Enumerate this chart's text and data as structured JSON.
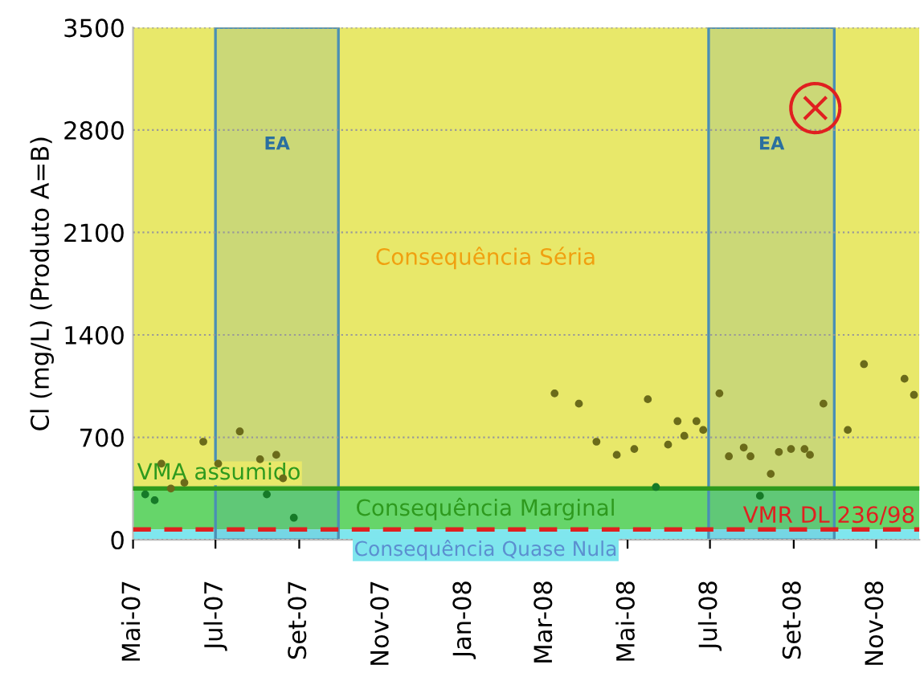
{
  "chart_data": {
    "type": "scatter",
    "ylabel": "Cl (mg/L) (Produto A=B)",
    "xlim": [
      "2007-05-01",
      "2008-12-03"
    ],
    "ylim": [
      0,
      3500
    ],
    "yticks": [
      0,
      700,
      1400,
      2100,
      2800,
      3500
    ],
    "xticks": [
      {
        "value": "2007-05-01",
        "label": "Mai-07"
      },
      {
        "value": "2007-07-01",
        "label": "Jul-07"
      },
      {
        "value": "2007-09-01",
        "label": "Set-07"
      },
      {
        "value": "2007-11-01",
        "label": "Nov-07"
      },
      {
        "value": "2008-01-01",
        "label": "Jan-08"
      },
      {
        "value": "2008-03-01",
        "label": "Mar-08"
      },
      {
        "value": "2008-05-01",
        "label": "Mai-08"
      },
      {
        "value": "2008-07-01",
        "label": "Jul-08"
      },
      {
        "value": "2008-09-01",
        "label": "Set-08"
      },
      {
        "value": "2008-11-01",
        "label": "Nov-08"
      }
    ],
    "grid": "y",
    "legend": false,
    "bands": [
      {
        "axis": "y",
        "from": 350,
        "to": 3500,
        "label": "Consequência Séria",
        "color": "#e8e86a"
      },
      {
        "axis": "y",
        "from": 70,
        "to": 350,
        "label": "Consequência Marginal",
        "color": "#66d56a"
      },
      {
        "axis": "y",
        "from": 0,
        "to": 70,
        "label": "Consequência Quase Nula",
        "color": "#7fe6ee"
      },
      {
        "axis": "x",
        "from": "2007-07-01",
        "to": "2007-09-30",
        "label": "EA",
        "color": "#4a8fb5"
      },
      {
        "axis": "x",
        "from": "2008-06-30",
        "to": "2008-10-01",
        "label": "EA",
        "color": "#4a8fb5"
      }
    ],
    "ref_lines": [
      {
        "axis": "y",
        "value": 350,
        "label": "VMA assumido",
        "color": "#2e9a1e",
        "line_style": "solid"
      },
      {
        "axis": "y",
        "value": 70,
        "label": "VMR DL 236/98",
        "color": "#e02020",
        "line_style": "dashed"
      }
    ],
    "series": [
      {
        "color": "#6b6b1a",
        "marker": "circle",
        "x": [
          "2007-05-22",
          "2007-05-29",
          "2007-06-08",
          "2007-06-22",
          "2007-07-03",
          "2007-07-19",
          "2007-08-03",
          "2007-08-15",
          "2007-08-20",
          "2008-03-08",
          "2008-03-26",
          "2008-04-08",
          "2008-04-23",
          "2008-05-06",
          "2008-05-16",
          "2008-05-31",
          "2008-06-07",
          "2008-06-12",
          "2008-06-21",
          "2008-06-26",
          "2008-07-08",
          "2008-07-15",
          "2008-07-26",
          "2008-07-31",
          "2008-08-15",
          "2008-08-21",
          "2008-08-30",
          "2008-09-09",
          "2008-09-13",
          "2008-09-23",
          "2008-10-11",
          "2008-10-23",
          "2008-11-22",
          "2008-11-29"
        ],
        "values": [
          520,
          350,
          390,
          670,
          520,
          740,
          550,
          580,
          420,
          1000,
          930,
          670,
          580,
          620,
          960,
          650,
          810,
          710,
          810,
          750,
          1000,
          570,
          630,
          570,
          450,
          600,
          620,
          620,
          580,
          930,
          750,
          1200,
          1100,
          990
        ]
      },
      {
        "color": "#167a28",
        "marker": "circle",
        "x": [
          "2007-05-10",
          "2007-05-17",
          "2007-08-08",
          "2007-08-28",
          "2008-05-22",
          "2008-08-07"
        ],
        "values": [
          310,
          270,
          310,
          150,
          360,
          300
        ]
      },
      {
        "color": "#e02020",
        "marker": "cross",
        "x": [
          "2008-09-17"
        ],
        "values": [
          2950
        ]
      }
    ]
  }
}
